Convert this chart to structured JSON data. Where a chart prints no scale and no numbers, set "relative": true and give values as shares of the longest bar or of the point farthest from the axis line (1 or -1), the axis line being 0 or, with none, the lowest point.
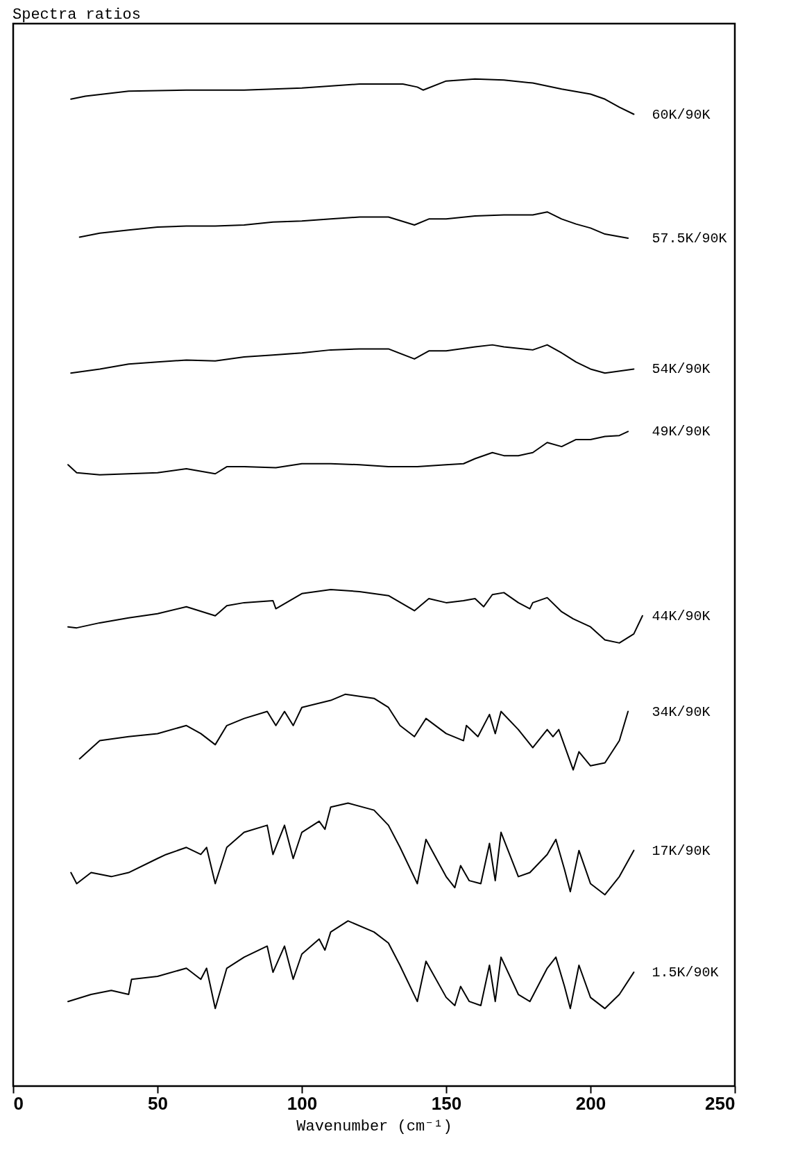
{
  "chart_data": {
    "type": "line",
    "title": "Spectra ratios",
    "xlabel": "Wavenumber (cm⁻¹)",
    "relative": true,
    "xlim": [
      0,
      250
    ],
    "xticks": [
      0,
      50,
      100,
      150,
      200,
      250
    ],
    "grid": false,
    "legend": false,
    "marker": "none",
    "line_style": "solid",
    "series": [
      {
        "name": "60K/90K",
        "color": "#000000",
        "x": [
          20,
          25,
          40,
          60,
          80,
          100,
          120,
          135,
          140,
          142,
          150,
          160,
          170,
          180,
          190,
          200,
          205,
          210,
          215
        ],
        "values": [
          0.98,
          0.983,
          0.988,
          0.989,
          0.989,
          0.991,
          0.995,
          0.995,
          0.992,
          0.989,
          0.998,
          1.0,
          0.999,
          0.996,
          0.99,
          0.985,
          0.98,
          0.972,
          0.965
        ]
      },
      {
        "name": "57.5K/90K",
        "color": "#000000",
        "x": [
          23,
          30,
          40,
          50,
          60,
          70,
          80,
          90,
          100,
          110,
          120,
          130,
          139,
          144,
          150,
          160,
          170,
          180,
          185,
          190,
          195,
          200,
          205,
          213
        ],
        "values": [
          0.843,
          0.847,
          0.85,
          0.853,
          0.854,
          0.854,
          0.855,
          0.858,
          0.859,
          0.861,
          0.863,
          0.863,
          0.855,
          0.861,
          0.861,
          0.864,
          0.865,
          0.865,
          0.868,
          0.861,
          0.856,
          0.852,
          0.846,
          0.842
        ]
      },
      {
        "name": "54K/90K",
        "color": "#000000",
        "x": [
          20,
          30,
          40,
          50,
          60,
          70,
          80,
          90,
          100,
          110,
          120,
          130,
          139,
          144,
          150,
          160,
          166,
          170,
          180,
          185,
          190,
          195,
          200,
          205,
          215
        ],
        "values": [
          0.708,
          0.712,
          0.717,
          0.719,
          0.721,
          0.72,
          0.724,
          0.726,
          0.728,
          0.731,
          0.732,
          0.732,
          0.722,
          0.73,
          0.73,
          0.734,
          0.736,
          0.734,
          0.731,
          0.736,
          0.728,
          0.719,
          0.712,
          0.708,
          0.712
        ]
      },
      {
        "name": "49K/90K",
        "color": "#000000",
        "x": [
          19,
          22,
          30,
          40,
          50,
          60,
          70,
          74,
          80,
          91,
          100,
          110,
          120,
          130,
          140,
          150,
          156,
          160,
          166,
          170,
          175,
          180,
          185,
          190,
          195,
          200,
          205,
          210,
          213
        ],
        "values": [
          0.617,
          0.609,
          0.607,
          0.608,
          0.609,
          0.613,
          0.608,
          0.615,
          0.615,
          0.614,
          0.618,
          0.618,
          0.617,
          0.615,
          0.615,
          0.617,
          0.618,
          0.623,
          0.629,
          0.626,
          0.626,
          0.629,
          0.639,
          0.635,
          0.642,
          0.642,
          0.645,
          0.646,
          0.65
        ]
      },
      {
        "name": "44K/90K",
        "color": "#000000",
        "x": [
          19,
          22,
          30,
          40,
          50,
          60,
          70,
          74,
          80,
          90,
          91,
          100,
          110,
          120,
          130,
          139,
          144,
          150,
          156,
          160,
          163,
          166,
          170,
          175,
          179,
          180,
          185,
          190,
          194,
          200,
          205,
          210,
          215,
          218
        ],
        "values": [
          0.456,
          0.455,
          0.46,
          0.465,
          0.469,
          0.476,
          0.467,
          0.477,
          0.48,
          0.482,
          0.474,
          0.489,
          0.493,
          0.491,
          0.487,
          0.472,
          0.484,
          0.48,
          0.482,
          0.484,
          0.476,
          0.488,
          0.49,
          0.48,
          0.474,
          0.48,
          0.485,
          0.471,
          0.464,
          0.456,
          0.443,
          0.44,
          0.449,
          0.467
        ]
      },
      {
        "name": "34K/90K",
        "color": "#000000",
        "x": [
          23,
          30,
          40,
          50,
          60,
          65,
          70,
          74,
          80,
          88,
          91,
          94,
          97,
          100,
          110,
          115,
          125,
          130,
          134,
          139,
          143,
          150,
          156,
          157,
          161,
          165,
          167,
          169,
          175,
          180,
          185,
          187,
          189,
          194,
          196,
          200,
          205,
          210,
          213
        ],
        "values": [
          0.325,
          0.343,
          0.347,
          0.35,
          0.358,
          0.35,
          0.339,
          0.358,
          0.365,
          0.372,
          0.358,
          0.372,
          0.358,
          0.376,
          0.383,
          0.389,
          0.385,
          0.376,
          0.358,
          0.347,
          0.365,
          0.35,
          0.343,
          0.358,
          0.347,
          0.369,
          0.35,
          0.372,
          0.354,
          0.336,
          0.354,
          0.347,
          0.354,
          0.314,
          0.332,
          0.318,
          0.321,
          0.343,
          0.372
        ]
      },
      {
        "name": "17K/90K",
        "color": "#000000",
        "x": [
          20,
          22,
          27,
          34,
          40,
          50,
          53,
          60,
          65,
          67,
          70,
          74,
          80,
          88,
          90,
          94,
          97,
          100,
          106,
          108,
          110,
          116,
          125,
          130,
          134,
          140,
          143,
          150,
          153,
          155,
          158,
          162,
          165,
          167,
          169,
          175,
          179,
          185,
          188,
          191,
          193,
          196,
          200,
          205,
          210,
          215
        ],
        "values": [
          0.212,
          0.201,
          0.212,
          0.208,
          0.212,
          0.226,
          0.23,
          0.237,
          0.23,
          0.237,
          0.201,
          0.237,
          0.252,
          0.259,
          0.23,
          0.259,
          0.226,
          0.252,
          0.263,
          0.255,
          0.277,
          0.281,
          0.274,
          0.259,
          0.237,
          0.201,
          0.245,
          0.208,
          0.197,
          0.219,
          0.204,
          0.201,
          0.241,
          0.204,
          0.252,
          0.208,
          0.212,
          0.23,
          0.245,
          0.215,
          0.193,
          0.234,
          0.201,
          0.19,
          0.208,
          0.234
        ]
      },
      {
        "name": "1.5K/90K",
        "color": "#000000",
        "x": [
          19,
          27,
          34,
          40,
          41,
          50,
          60,
          65,
          67,
          70,
          74,
          80,
          88,
          90,
          94,
          97,
          100,
          106,
          108,
          110,
          116,
          125,
          130,
          134,
          140,
          143,
          150,
          153,
          155,
          158,
          162,
          165,
          167,
          169,
          175,
          179,
          185,
          188,
          191,
          193,
          196,
          200,
          205,
          210,
          215
        ],
        "values": [
          0.084,
          0.091,
          0.095,
          0.091,
          0.106,
          0.109,
          0.117,
          0.106,
          0.117,
          0.077,
          0.117,
          0.128,
          0.139,
          0.113,
          0.139,
          0.106,
          0.131,
          0.146,
          0.135,
          0.153,
          0.164,
          0.153,
          0.142,
          0.12,
          0.084,
          0.124,
          0.088,
          0.08,
          0.099,
          0.084,
          0.08,
          0.12,
          0.084,
          0.128,
          0.091,
          0.084,
          0.117,
          0.128,
          0.099,
          0.077,
          0.12,
          0.088,
          0.077,
          0.091,
          0.113
        ]
      }
    ]
  }
}
